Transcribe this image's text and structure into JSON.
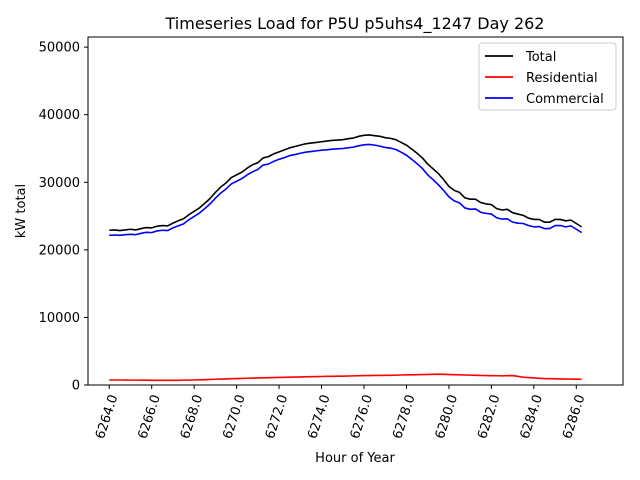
{
  "chart_data": {
    "type": "line",
    "title": "Timeseries Load for P5U p5uhs4_1247  Day 262",
    "xlabel": "Hour of Year",
    "ylabel": "kW total",
    "xlim": [
      6263.0,
      6288.2
    ],
    "ylim": [
      0,
      51500
    ],
    "xticks": [
      6264,
      6266,
      6268,
      6270,
      6272,
      6274,
      6276,
      6278,
      6280,
      6282,
      6284,
      6286
    ],
    "xtick_labels": [
      "6264.0",
      "6266.0",
      "6268.0",
      "6270.0",
      "6272.0",
      "6274.0",
      "6276.0",
      "6278.0",
      "6280.0",
      "6282.0",
      "6284.0",
      "6286.0"
    ],
    "yticks": [
      0,
      10000,
      20000,
      30000,
      40000,
      50000
    ],
    "ytick_labels": [
      "0",
      "10000",
      "20000",
      "30000",
      "40000",
      "50000"
    ],
    "legend_position": "top-right",
    "x_start": 6264.0,
    "x_step": 0.25,
    "series": [
      {
        "name": "Total",
        "color": "#000000",
        "values": [
          22900,
          22950,
          22850,
          22950,
          23050,
          22950,
          23150,
          23300,
          23250,
          23500,
          23600,
          23550,
          23950,
          24300,
          24600,
          25200,
          25700,
          26200,
          26900,
          27600,
          28500,
          29300,
          29900,
          30700,
          31100,
          31500,
          32100,
          32600,
          32900,
          33600,
          33800,
          34200,
          34500,
          34800,
          35100,
          35300,
          35500,
          35700,
          35800,
          35900,
          36000,
          36100,
          36200,
          36250,
          36300,
          36450,
          36550,
          36800,
          36950,
          37000,
          36900,
          36800,
          36600,
          36500,
          36300,
          35900,
          35500,
          34900,
          34300,
          33600,
          32700,
          32000,
          31300,
          30400,
          29400,
          28800,
          28500,
          27700,
          27500,
          27500,
          27000,
          26800,
          26700,
          26100,
          25900,
          26000,
          25500,
          25300,
          25100,
          24700,
          24500,
          24500,
          24100,
          24100,
          24500,
          24500,
          24300,
          24400,
          23900,
          23400
        ]
      },
      {
        "name": "Residential",
        "color": "#ff0000",
        "values": [
          750,
          740,
          740,
          730,
          720,
          720,
          710,
          710,
          700,
          700,
          700,
          700,
          690,
          700,
          720,
          730,
          740,
          760,
          790,
          820,
          850,
          880,
          900,
          930,
          950,
          970,
          1000,
          1020,
          1040,
          1060,
          1080,
          1100,
          1120,
          1140,
          1160,
          1180,
          1200,
          1210,
          1230,
          1250,
          1260,
          1280,
          1290,
          1300,
          1310,
          1330,
          1350,
          1370,
          1390,
          1400,
          1410,
          1420,
          1430,
          1440,
          1460,
          1480,
          1500,
          1510,
          1530,
          1550,
          1560,
          1580,
          1600,
          1580,
          1550,
          1520,
          1500,
          1480,
          1460,
          1440,
          1420,
          1400,
          1380,
          1370,
          1350,
          1380,
          1400,
          1280,
          1150,
          1100,
          1050,
          1000,
          950,
          930,
          920,
          900,
          880,
          870,
          860,
          850
        ]
      },
      {
        "name": "Commercial",
        "color": "#0000ff",
        "values": [
          22150,
          22200,
          22150,
          22250,
          22300,
          22250,
          22450,
          22600,
          22550,
          22800,
          22900,
          22850,
          23250,
          23550,
          23850,
          24450,
          24950,
          25450,
          26100,
          26800,
          27650,
          28400,
          29000,
          29750,
          30150,
          30550,
          31100,
          31550,
          31900,
          32550,
          32700,
          33100,
          33400,
          33650,
          33950,
          34100,
          34300,
          34450,
          34550,
          34650,
          34750,
          34800,
          34900,
          34950,
          35000,
          35100,
          35200,
          35400,
          35550,
          35600,
          35500,
          35350,
          35150,
          35050,
          34850,
          34450,
          34000,
          33400,
          32750,
          32050,
          31100,
          30400,
          29650,
          28800,
          27850,
          27250,
          26950,
          26200,
          26000,
          26050,
          25550,
          25400,
          25300,
          24750,
          24550,
          24600,
          24100,
          23950,
          23900,
          23600,
          23400,
          23450,
          23150,
          23150,
          23600,
          23600,
          23400,
          23550,
          23050,
          22550
        ]
      }
    ]
  }
}
